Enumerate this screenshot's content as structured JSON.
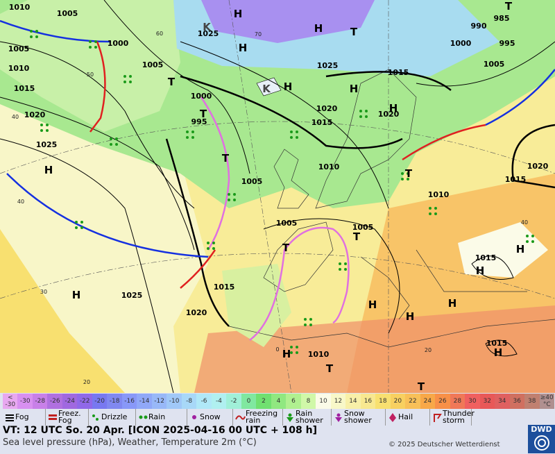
{
  "map": {
    "pressure_labels": [
      "1010",
      "1005",
      "1005",
      "1000",
      "1005",
      "1010",
      "1015",
      "1020",
      "1025",
      "1025",
      "1025",
      "1015",
      "1005",
      "990",
      "985",
      "995",
      "1000",
      "1020",
      "1015",
      "1000",
      "995",
      "1020",
      "1010",
      "1005",
      "1005",
      "1005",
      "1010",
      "1015",
      "1020",
      "1015",
      "1015",
      "1025",
      "1020",
      "1010",
      "1015"
    ],
    "pressure_centers": [
      "H",
      "H",
      "H",
      "H",
      "H",
      "H",
      "H",
      "H",
      "H",
      "H",
      "H",
      "H",
      "H",
      "H",
      "H",
      "T",
      "T",
      "T",
      "T",
      "T",
      "T",
      "T",
      "T",
      "T",
      "T",
      "K",
      "K"
    ],
    "isotherm_labels": [
      "40",
      "30",
      "20",
      "60",
      "50",
      "70",
      "40",
      "40",
      "20",
      "0"
    ]
  },
  "legend": {
    "temperature_scale": [
      {
        "label": "<\n-30",
        "color": "#e8a8f0"
      },
      {
        "label": "-30",
        "color": "#d890f0"
      },
      {
        "label": "-28",
        "color": "#c880e8"
      },
      {
        "label": "-26",
        "color": "#b070e0"
      },
      {
        "label": "-24",
        "color": "#a068e0"
      },
      {
        "label": "-22",
        "color": "#9068e8"
      },
      {
        "label": "-20",
        "color": "#7878f0"
      },
      {
        "label": "-18",
        "color": "#8088f0"
      },
      {
        "label": "-16",
        "color": "#8898f8"
      },
      {
        "label": "-14",
        "color": "#90a8f8"
      },
      {
        "label": "-12",
        "color": "#98b8f8"
      },
      {
        "label": "-10",
        "color": "#a0c8f8"
      },
      {
        "label": "-8",
        "color": "#a8d8f8"
      },
      {
        "label": "-6",
        "color": "#b0e8f8"
      },
      {
        "label": "-4",
        "color": "#b0f0f0"
      },
      {
        "label": "-2",
        "color": "#a0f0d8"
      },
      {
        "label": "0",
        "color": "#80e8a0"
      },
      {
        "label": "2",
        "color": "#70e070"
      },
      {
        "label": "4",
        "color": "#90e880"
      },
      {
        "label": "6",
        "color": "#b0f090"
      },
      {
        "label": "8",
        "color": "#d0f8a8"
      },
      {
        "label": "10",
        "color": "#fbfbe8"
      },
      {
        "label": "12",
        "color": "#f8f8c8"
      },
      {
        "label": "14",
        "color": "#f8f0a8"
      },
      {
        "label": "16",
        "color": "#f8e890"
      },
      {
        "label": "18",
        "color": "#f8e070"
      },
      {
        "label": "20",
        "color": "#f8d060"
      },
      {
        "label": "22",
        "color": "#f8c058"
      },
      {
        "label": "24",
        "color": "#f8a848"
      },
      {
        "label": "26",
        "color": "#f89048"
      },
      {
        "label": "28",
        "color": "#f07858"
      },
      {
        "label": "30",
        "color": "#f06060"
      },
      {
        "label": "32",
        "color": "#e85858"
      },
      {
        "label": "34",
        "color": "#e06060"
      },
      {
        "label": "36",
        "color": "#d07060"
      },
      {
        "label": "38",
        "color": "#c08070"
      },
      {
        "label": "≥40\n°C",
        "color": "#b09090"
      }
    ],
    "weather": [
      "Fog",
      "Freez.\nFog",
      "Drizzle",
      "Rain",
      "Snow",
      "Freezing\nrain",
      "Rain\nshower",
      "Snow\nshower",
      "Hail",
      "Thunder\nstorm"
    ]
  },
  "footer": {
    "valid_time": "VT: 12 UTC So.  20 Apr. [ICON 2025-04-16  00 UTC + 108 h]",
    "description": "Sea level pressure (hPa), Weather, Temperature 2m (°C)",
    "copyright": "© 2025 Deutscher Wetterdienst",
    "logo": "DWD"
  }
}
